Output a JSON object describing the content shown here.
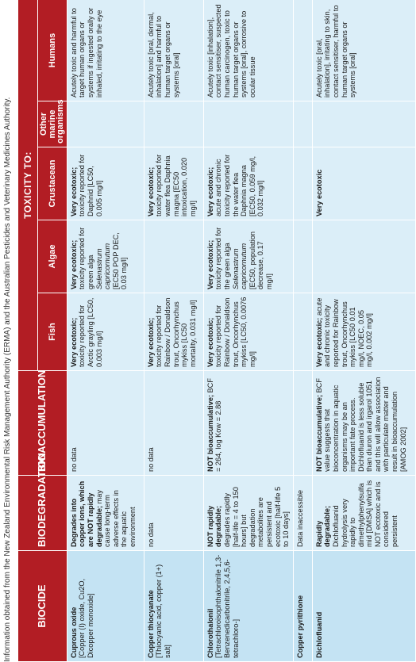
{
  "caption": "Information obtained from the New Zealand Environmental Risk Management Authority (ERMA) and the Australian Pesticides and Veterinary Medicines Authority.",
  "headers": {
    "biocide": "BIOCIDE",
    "biodegradation": "BIODEGRADATION",
    "bioaccumulation": "BIOACCUMULATION",
    "toxicity_to": "TOXICITY TO:",
    "fish": "Fish",
    "algae": "Algae",
    "crustacean": "Crustacean",
    "other_marine": "Other marine organisms",
    "humans": "Humans"
  },
  "rows": [
    {
      "biocide_name": "Cuprous oxide",
      "biocide_detail": "[Copper (I) oxide, Cu2O, Dicopper monoxide]",
      "biodeg_bold": "Degrades into copper ions, which are NOT rapidly degradable;",
      "biodeg_text": " may cause long-term adverse effects in the aquatic environment",
      "bioacc_bold": "",
      "bioacc_text": "no data",
      "fish_bold": "Very ecotoxic;",
      "fish_text": " toxicity reported for Arctic grayling [LC50, 0.003 mg/l]",
      "algae_bold": "Very ecotoxic;",
      "algae_text1": " toxicity reported for green alga ",
      "algae_italic": "Selenastrum capricornutum",
      "algae_text2": " [EC50 POP DEC, 0.03 mg/l]",
      "crust_bold": "Very ecotoxic;",
      "crust_text": " toxicity reported for Daphnid [LC50, 0.005 mg/l]",
      "other": "",
      "humans": "Acutely toxic and harmful to target human organs or systems if ingested orally or inhaled, irritating to the eye"
    },
    {
      "biocide_name": "Copper thiocyanate",
      "biocide_detail": "[Thiocyanic acid, copper (1+) salt]",
      "biodeg_bold": "",
      "biodeg_text": "no data",
      "bioacc_bold": "",
      "bioacc_text": "no data",
      "fish_bold": "Very ecotoxic;",
      "fish_text": " toxicity reported for Rainbow / Donaldson trout, Oncorhynchus mykiss [LC50 mortality, 0.031 mg/l]",
      "algae_bold": "",
      "algae_text1": "",
      "algae_italic": "",
      "algae_text2": "",
      "crust_bold": "Very ecotoxic;",
      "crust_text": " toxicity reported for water flea Daphnia magna [EC50 intoxication, 0.020 mg/l]",
      "other": "",
      "humans": "Acutely toxic [oral, dermal, inhalation] and harmful to human target organs or systems [oral]"
    },
    {
      "biocide_name": "Chlorothalonil",
      "biocide_detail": "[Tetrachloroisophthalonitrile 1,3-Benzenedicarbonitrile, 2,4,5,6-tetrachloro-]",
      "biodeg_bold": "NOT rapidly degradable;",
      "biodeg_text": " degrades rapidly [half-life = 4 to 150 hours] but degradation metabolites are persistent and ecotoxic [half-life 5 to 10 days]",
      "bioacc_bold": "NOT bioaccumulative;",
      "bioacc_text": " BCF = 264, log Kow = 2.88",
      "fish_bold": "Very ecotoxic;",
      "fish_text": " toxicity reported for Rainbow / Donaldson trout, Oncorhynchus mykiss [LC50, 0.0076 mg/l]",
      "algae_bold": "Very ecotoxic;",
      "algae_text1": " toxicity reported for the green alga ",
      "algae_italic": "Selenastrum capricornutum",
      "algae_text2": " [EC50, population decrease, 0.17 mg/l]",
      "crust_bold": "Very ecotoxic;",
      "crust_text": " acute and chronic toxicity reported for the water flea Daphnia magna [EC50, 0.059 mg/l, 0.032 mg/l]",
      "other": "",
      "humans": "Acutely toxic [inhalation], contact sensitiser, suspected human carcinogen, toxic to human target organs or systems [oral], corrosive to ocular tissue"
    },
    {
      "biocide_name": "Copper pyrithione",
      "biocide_detail": "",
      "biodeg_bold": "",
      "biodeg_text": "Data inaccessible",
      "bioacc_bold": "",
      "bioacc_text": "",
      "fish_bold": "",
      "fish_text": "",
      "algae_bold": "",
      "algae_text1": "",
      "algae_italic": "",
      "algae_text2": "",
      "crust_bold": "",
      "crust_text": "",
      "other": "",
      "humans": ""
    },
    {
      "biocide_name": "Dichlofluanid",
      "biocide_detail": "",
      "biodeg_bold": "Rapidly degradable;",
      "biodeg_text": " Dichlofluanid hydrolysis very rapidly to dimethylphenylsulfamid [DMSA] which is NOT ecotoxic and is considered persistent",
      "bioacc_bold": "NOT bioaccumulative;",
      "bioacc_text": " BCF value suggests that bioconcentration in aquatic organisms may be an important fate process. Dichlofluanid is less soluble than diuron and irgarol 1051 and this will allow association with particulate matter and result in bioaccumulation [AMOG 2002]",
      "fish_bold": "Very ecotoxic;",
      "fish_text": " acute and chronic toxicity reported for Rainbow trout, Oncorhynchus mykiss [LC50 0.01 mg/l, NOEC, 0.05 mg/l, 0.002 mg/l]",
      "algae_bold": "",
      "algae_text1": "",
      "algae_italic": "",
      "algae_text2": "",
      "crust_bold": "Very ecotoxic",
      "crust_text": "",
      "other": "",
      "humans": "Acutely toxic [oral, inhalation], irritating to skin, contact sensitiser, harmful to human target organs or systems [oral]"
    }
  ]
}
